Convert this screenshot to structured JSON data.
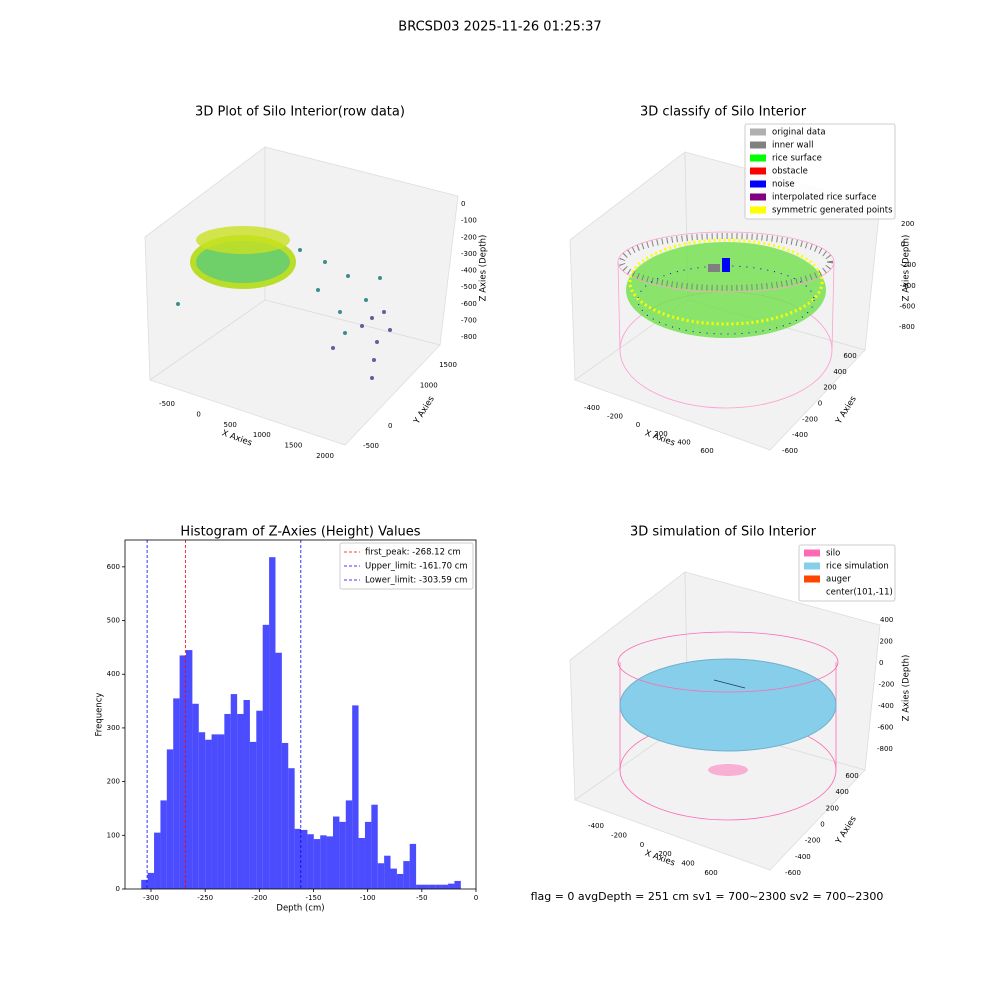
{
  "title": "BRCSD03 2025-11-26 01:25:37",
  "footer": "flag = 0     avgDepth = 251 cm  sv1 = 700~2300  sv2 = 700~2300",
  "chart_data": [
    {
      "type": "scatter3d",
      "title": "3D Plot of Silo Interior(row data)",
      "xlabel": "X Axies",
      "ylabel": "Y Axies",
      "zlabel": "Z Axies (Depth)",
      "xticks": [
        -500,
        0,
        500,
        1000,
        1500,
        2000
      ],
      "yticks": [
        -500,
        0,
        1000,
        1500
      ],
      "zticks": [
        0,
        -100,
        -200,
        -300,
        -400,
        -500,
        -600,
        -700,
        -800
      ]
    },
    {
      "type": "scatter3d",
      "title": "3D classify of Silo Interior",
      "xlabel": "X Axies",
      "ylabel": "Y Axies",
      "zlabel": "Z Axies (Depth)",
      "xticks": [
        -400,
        -200,
        0,
        200,
        400,
        600
      ],
      "yticks": [
        -600,
        -400,
        -200,
        0,
        200,
        400,
        600
      ],
      "zticks": [
        200,
        0,
        -200,
        -400,
        -600,
        -800
      ],
      "legend": [
        {
          "name": "original data",
          "color": "#b0b0b0"
        },
        {
          "name": "inner wall",
          "color": "#808080"
        },
        {
          "name": "rice surface",
          "color": "#00ff00"
        },
        {
          "name": "obstacle",
          "color": "#ff0000"
        },
        {
          "name": "noise",
          "color": "#0000ff"
        },
        {
          "name": "interpolated rice surface",
          "color": "#800080"
        },
        {
          "name": "symmetric generated points",
          "color": "#ffff00"
        }
      ]
    },
    {
      "type": "histogram",
      "title": "Histogram of Z-Axies (Height) Values",
      "xlabel": "Depth (cm)",
      "ylabel": "Frequency",
      "color": "#0000ff",
      "bins": [
        -309,
        -303.1,
        -297.2,
        -291.3,
        -285.4,
        -279.5,
        -273.6,
        -267.7,
        -261.8,
        -255.9,
        -250,
        -244.1,
        -238.2,
        -232.3,
        -226.4,
        -220.5,
        -214.6,
        -208.7,
        -202.8,
        -196.9,
        -191,
        -185.1,
        -179.2,
        -173.3,
        -167.4,
        -161.5,
        -155.6,
        -149.7,
        -143.8,
        -137.9,
        -132,
        -126.1,
        -120.2,
        -114.3,
        -108.4,
        -102.5,
        -96.6,
        -90.7,
        -84.8,
        -78.9,
        -73,
        -67.1,
        -61.2,
        -55.3,
        -49.4,
        -43.5,
        -37.6,
        -31.7,
        -25.8,
        -19.9,
        -14
      ],
      "values": [
        17,
        30,
        105,
        165,
        260,
        355,
        435,
        445,
        345,
        292,
        278,
        288,
        288,
        326,
        363,
        326,
        352,
        274,
        332,
        492,
        618,
        440,
        272,
        225,
        112,
        110,
        102,
        93,
        100,
        98,
        135,
        125,
        165,
        342,
        95,
        125,
        157,
        48,
        62,
        38,
        28,
        52,
        84,
        8,
        8,
        8,
        8,
        8,
        10,
        15
      ],
      "xlim": [
        -324,
        0
      ],
      "ylim": [
        0,
        650
      ],
      "xticks": [
        -300,
        -250,
        -200,
        -150,
        -100,
        -50,
        0
      ],
      "yticks": [
        0,
        100,
        200,
        300,
        400,
        500,
        600
      ],
      "vlines": [
        {
          "name": "first_peak: -268.12 cm",
          "value": -268.12,
          "color": "#ff0000"
        },
        {
          "name": "Upper_limit: -161.70 cm",
          "value": -161.7,
          "color": "#0000ff"
        },
        {
          "name": "Lower_limit: -303.59 cm",
          "value": -303.59,
          "color": "#0000ff"
        }
      ],
      "legend_position": "upper right"
    },
    {
      "type": "surface3d",
      "title": "3D simulation of Silo Interior",
      "xlabel": "X Axies",
      "ylabel": "Y Axies",
      "zlabel": "Z Axies (Depth)",
      "xticks": [
        -400,
        -200,
        0,
        200,
        400,
        600
      ],
      "yticks": [
        -600,
        -400,
        -200,
        0,
        200,
        400,
        600
      ],
      "zticks": [
        400,
        200,
        0,
        -200,
        -400,
        -600,
        -800
      ],
      "legend": [
        {
          "name": "silo",
          "color": "#ff69b4"
        },
        {
          "name": "rice simulation",
          "color": "#87ceeb"
        },
        {
          "name": "auger",
          "color": "#ff4500"
        },
        {
          "name": "center(101,-11)",
          "color": "none"
        }
      ]
    }
  ]
}
